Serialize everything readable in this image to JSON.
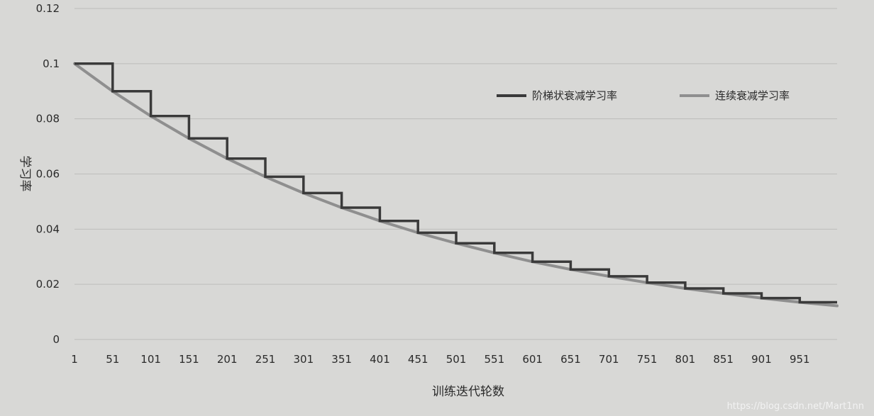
{
  "chart_data": {
    "type": "line",
    "title": "",
    "xlabel": "训练迭代轮数",
    "ylabel": "学习率",
    "x_ticks": [
      "1",
      "51",
      "101",
      "151",
      "201",
      "251",
      "301",
      "351",
      "401",
      "451",
      "501",
      "551",
      "601",
      "651",
      "701",
      "751",
      "801",
      "851",
      "901",
      "951"
    ],
    "y_ticks": [
      "0.12",
      "0.1",
      "0.08",
      "0.06",
      "0.04",
      "0.02",
      "0"
    ],
    "xlim": [
      1,
      1000
    ],
    "ylim": [
      0,
      0.12
    ],
    "grid": "horizontal",
    "legend_position": "right",
    "colors": {
      "staircase": "#3a3a3a",
      "continuous": "#8f8f8f",
      "background": "#d8d8d6",
      "grid": "#bdbdbb"
    },
    "series": [
      {
        "name": "阶梯状衰减学习率",
        "style": "step",
        "x": [
          1,
          51,
          101,
          151,
          201,
          251,
          301,
          351,
          401,
          451,
          501,
          551,
          601,
          651,
          701,
          751,
          801,
          851,
          901,
          951,
          1000
        ],
        "values": [
          0.1,
          0.09,
          0.081,
          0.0729,
          0.0656,
          0.059,
          0.0531,
          0.0478,
          0.043,
          0.0387,
          0.0349,
          0.0314,
          0.0282,
          0.0254,
          0.0229,
          0.0206,
          0.0185,
          0.0167,
          0.015,
          0.0135,
          0.0135
        ]
      },
      {
        "name": "连续衰减学习率",
        "style": "smooth",
        "x": [
          1,
          51,
          101,
          151,
          201,
          251,
          301,
          351,
          401,
          451,
          501,
          551,
          601,
          651,
          701,
          751,
          801,
          851,
          901,
          951,
          1000
        ],
        "values": [
          0.1,
          0.09,
          0.081,
          0.0729,
          0.0656,
          0.059,
          0.0531,
          0.0478,
          0.043,
          0.0387,
          0.0349,
          0.0314,
          0.0282,
          0.0254,
          0.0229,
          0.0206,
          0.0185,
          0.0167,
          0.015,
          0.0135,
          0.0122
        ]
      }
    ]
  },
  "watermark": "https://blog.csdn.net/Mart1nn"
}
